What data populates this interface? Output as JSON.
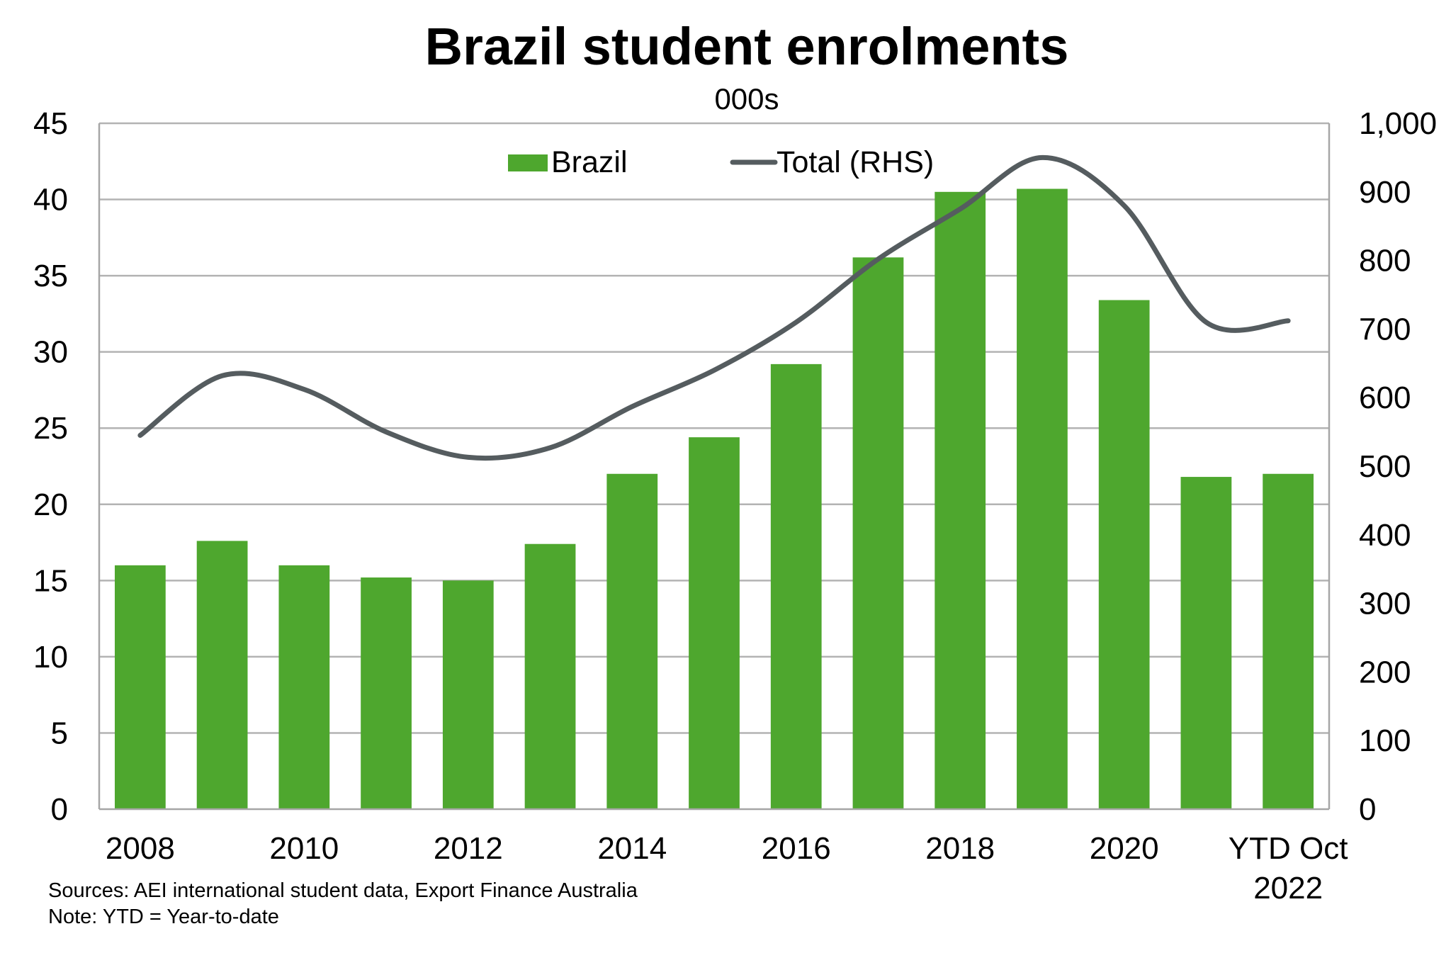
{
  "chart_data": {
    "type": "bar",
    "title": "Brazil student enrolments",
    "subtitle": "000s",
    "xlabel": "",
    "ylabel": "",
    "categories": [
      "2008",
      "2009",
      "2010",
      "2011",
      "2012",
      "2013",
      "2014",
      "2015",
      "2016",
      "2017",
      "2018",
      "2019",
      "2020",
      "2021",
      "YTD Oct 2022"
    ],
    "x_tick_labels": [
      "2008",
      "2010",
      "2012",
      "2014",
      "2016",
      "2018",
      "2020",
      "YTD Oct 2022"
    ],
    "series": [
      {
        "name": "Brazil",
        "type": "bar",
        "axis": "left",
        "color": "#4ea72e",
        "values": [
          16.0,
          17.6,
          16.0,
          15.2,
          15.0,
          17.4,
          22.0,
          24.4,
          29.2,
          36.2,
          40.5,
          40.7,
          33.4,
          21.8,
          22.0
        ]
      },
      {
        "name": "Total (RHS)",
        "type": "line",
        "smooth": true,
        "axis": "right",
        "color": "#555c5f",
        "values": [
          545,
          632,
          612,
          550,
          513,
          527,
          587,
          640,
          710,
          802,
          875,
          950,
          880,
          710,
          712
        ]
      }
    ],
    "y_left": {
      "range": [
        0,
        45
      ],
      "ticks": [
        0,
        5,
        10,
        15,
        20,
        25,
        30,
        35,
        40,
        45
      ],
      "tick_labels": [
        "0",
        "5",
        "10",
        "15",
        "20",
        "25",
        "30",
        "35",
        "40",
        "45"
      ]
    },
    "y_right": {
      "range": [
        0,
        1000
      ],
      "ticks": [
        0,
        100,
        200,
        300,
        400,
        500,
        600,
        700,
        800,
        900,
        1000
      ],
      "tick_labels": [
        "0",
        "100",
        "200",
        "300",
        "400",
        "500",
        "600",
        "700",
        "800",
        "900",
        "1,000"
      ]
    },
    "grid": true,
    "legend": {
      "placement": "top-center",
      "entries": [
        "Brazil",
        "Total (RHS)"
      ]
    },
    "footnotes": [
      "Sources: AEI international student data, Export Finance Australia",
      "Note: YTD = Year-to-date"
    ],
    "colors": {
      "bar": "#4ea72e",
      "line": "#555c5f",
      "grid": "#b3b3b3",
      "axis": "#a6a6a6"
    }
  }
}
